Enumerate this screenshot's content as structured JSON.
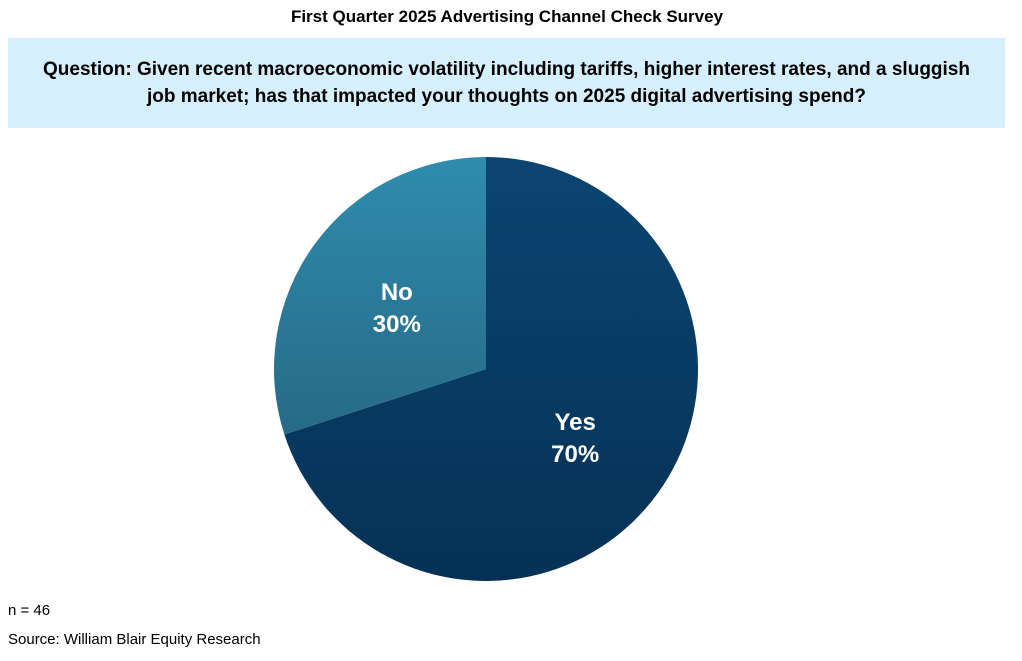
{
  "title": "First Quarter 2025 Advertising Channel Check Survey",
  "question": "Question: Given recent macroeconomic volatility including tariffs, higher interest rates, and a sluggish job market; has that impacted your thoughts on 2025 digital advertising spend?",
  "chart_data": {
    "type": "pie",
    "title": "First Quarter 2025 Advertising Channel Check Survey",
    "start": "12 o'clock, clockwise",
    "slices": [
      {
        "label": "Yes",
        "value": 70,
        "value_label": "70%",
        "color_top": "#0b4571",
        "color_bottom": "#053156"
      },
      {
        "label": "No",
        "value": 30,
        "value_label": "30%",
        "color_top": "#2f8cad",
        "color_bottom": "#276a87"
      }
    ]
  },
  "footer": {
    "n": "n = 46",
    "source": "Source: William Blair Equity Research"
  }
}
